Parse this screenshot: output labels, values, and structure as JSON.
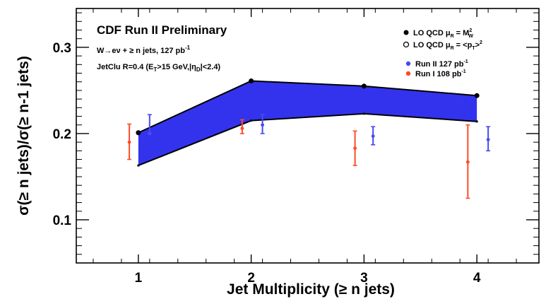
{
  "chart_data": {
    "type": "line",
    "title": "",
    "xlabel": "Jet Multiplicity (≥ n jets)",
    "ylabel": "σ(≥ n jets)/σ(≥ n-1 jets)",
    "xlim": [
      0.45,
      4.55
    ],
    "ylim": [
      0.05,
      0.345
    ],
    "x_ticks": [
      1,
      2,
      3,
      4
    ],
    "y_ticks": [
      0.1,
      0.2,
      0.3
    ],
    "x_tick_labels": [
      "1",
      "2",
      "3",
      "4"
    ],
    "y_tick_labels": [
      "0.1",
      "0.2",
      "0.3"
    ],
    "grid": false,
    "legend_position": "top-right",
    "annotations": {
      "title": "CDF Run II Preliminary",
      "line1": "W→eν + ≥ n jets, 127 pb⁻¹",
      "line2": "JetClu R=0.4 (E_T>15 GeV,|η_D|<2.4)"
    },
    "series": [
      {
        "name": "LO QCD μ_R = M_W²",
        "kind": "line-markers",
        "marker": "filled-circle",
        "color": "#000000",
        "x": [
          1,
          2,
          3,
          4
        ],
        "y": [
          0.201,
          0.261,
          0.255,
          0.244
        ]
      },
      {
        "name": "LO QCD μ_R = <p_T>²",
        "kind": "line-markers",
        "marker": "open-circle",
        "color": "#000000",
        "x": [
          1,
          2,
          3,
          4
        ],
        "y": [
          0.163,
          0.215,
          0.223,
          0.214
        ]
      },
      {
        "name": "Run II 127 pb⁻¹",
        "kind": "errorbar",
        "color": "#4a4af0",
        "x": [
          1.1,
          2.1,
          3.08,
          4.1
        ],
        "y": [
          0.2,
          0.21,
          0.197,
          0.193
        ],
        "yerr_low": [
          0.2,
          0.2,
          0.187,
          0.18
        ],
        "yerr_high": [
          0.222,
          0.222,
          0.208,
          0.208
        ]
      },
      {
        "name": "Run I 108 pb⁻¹",
        "kind": "errorbar",
        "color": "#ff4a2a",
        "x": [
          0.92,
          1.92,
          2.92,
          3.92
        ],
        "y": [
          0.19,
          0.206,
          0.183,
          0.167
        ],
        "yerr_low": [
          0.17,
          0.2,
          0.163,
          0.125
        ],
        "yerr_high": [
          0.211,
          0.216,
          0.203,
          0.21
        ]
      }
    ],
    "band": {
      "between": [
        "LO QCD μ_R = M_W²",
        "LO QCD μ_R = <p_T>²"
      ],
      "fill": "#3333ee"
    },
    "legend_labels": {
      "s0_text": "LO QCD μ",
      "s0_sub": "R",
      "s0_eq": " = M",
      "s0_sup2": "2",
      "s0_subw": "W",
      "s1_text": "LO QCD μ",
      "s1_sub": "R",
      "s1_eq": " = <p",
      "s1_subt": "T",
      "s1_tail": ">",
      "s1_sup2": "2",
      "s2_text": "Run II 127 pb",
      "s2_sup": "-1",
      "s3_text": "Run I 108 pb",
      "s3_sup": "-1"
    },
    "ann_parts": {
      "l1_a": "W→eν + ≥ n jets, 127 pb",
      "l1_sup": "-1",
      "l2_a": "JetClu R=0.4 (E",
      "l2_subT": "T",
      "l2_b": ">15 GeV,|η",
      "l2_subD": "D",
      "l2_c": "|<2.4)"
    }
  }
}
